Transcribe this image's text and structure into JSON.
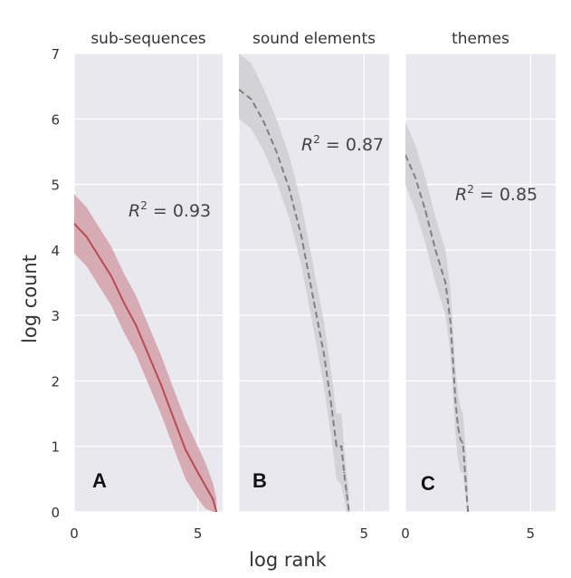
{
  "figure": {
    "ylabel": "log count",
    "xlabel": "log rank",
    "background": "#e8e8ee",
    "grid_color": "#ffffff"
  },
  "chart_data": [
    {
      "type": "line",
      "title": "sub-sequences",
      "panel_letter": "A",
      "r2": "0.93",
      "r2_prefix": "R",
      "r2_sup": "2",
      "r2_eq": " = ",
      "xlim": [
        0,
        6
      ],
      "ylim": [
        0,
        7
      ],
      "xticks": [
        0,
        5
      ],
      "yticks": [
        0,
        1,
        2,
        3,
        4,
        5,
        6,
        7
      ],
      "grid": true,
      "line_style": "solid",
      "line_color": "#b94a52",
      "band_color": "#d4a0a8",
      "series": [
        {
          "x": [
            0,
            0.5,
            1.0,
            1.5,
            2.0,
            2.5,
            3.0,
            3.5,
            4.0,
            4.5,
            5.0,
            5.3,
            5.6,
            5.75
          ],
          "y": [
            4.4,
            4.2,
            3.9,
            3.6,
            3.2,
            2.85,
            2.4,
            1.95,
            1.45,
            0.95,
            0.6,
            0.4,
            0.2,
            0.0
          ],
          "lower": [
            3.95,
            3.75,
            3.45,
            3.15,
            2.75,
            2.4,
            1.95,
            1.5,
            1.0,
            0.5,
            0.2,
            0.05,
            0.0,
            0.0
          ],
          "upper": [
            4.85,
            4.65,
            4.35,
            4.05,
            3.65,
            3.3,
            2.85,
            2.4,
            1.9,
            1.4,
            1.0,
            0.75,
            0.45,
            0.2
          ]
        }
      ]
    },
    {
      "type": "line",
      "title": "sound elements",
      "panel_letter": "B",
      "r2": "0.87",
      "r2_prefix": "R",
      "r2_sup": "2",
      "r2_eq": " = ",
      "xlim": [
        0,
        6
      ],
      "ylim": [
        0,
        7
      ],
      "xticks": [
        5
      ],
      "yticks": [
        0,
        1,
        2,
        3,
        4,
        5,
        6,
        7
      ],
      "grid": true,
      "line_style": "dashed",
      "line_color": "#808080",
      "band_color": "#cfcfd2",
      "series": [
        {
          "x": [
            0,
            0.5,
            1.0,
            1.5,
            2.0,
            2.5,
            3.0,
            3.4,
            3.7,
            3.9,
            4.1,
            4.2,
            4.3,
            4.4
          ],
          "y": [
            6.45,
            6.3,
            5.95,
            5.5,
            4.95,
            4.2,
            3.2,
            2.4,
            1.6,
            1.0,
            1.0,
            0.6,
            0.3,
            0.0
          ],
          "lower": [
            6.0,
            5.85,
            5.5,
            5.05,
            4.5,
            3.75,
            2.75,
            1.9,
            1.1,
            0.5,
            0.4,
            0.2,
            0.0,
            0.0
          ],
          "upper": [
            7.0,
            6.85,
            6.45,
            6.0,
            5.45,
            4.7,
            3.7,
            2.9,
            2.1,
            1.5,
            1.5,
            1.0,
            0.6,
            0.3
          ]
        }
      ]
    },
    {
      "type": "line",
      "title": "themes",
      "panel_letter": "C",
      "r2": "0.85",
      "r2_prefix": "R",
      "r2_sup": "2",
      "r2_eq": " = ",
      "xlim": [
        0,
        6
      ],
      "ylim": [
        0,
        7
      ],
      "xticks": [
        0,
        5
      ],
      "yticks": [
        0,
        1,
        2,
        3,
        4,
        5,
        6,
        7
      ],
      "grid": true,
      "line_style": "dashed",
      "line_color": "#808080",
      "band_color": "#cfcfd2",
      "series": [
        {
          "x": [
            0,
            0.4,
            0.8,
            1.2,
            1.6,
            1.8,
            1.9,
            2.0,
            2.1,
            2.2,
            2.3,
            2.4,
            2.5
          ],
          "y": [
            5.45,
            5.1,
            4.6,
            4.0,
            3.5,
            2.9,
            2.3,
            1.7,
            1.3,
            1.1,
            1.05,
            0.5,
            0.0
          ],
          "lower": [
            5.0,
            4.6,
            4.1,
            3.5,
            3.0,
            2.4,
            1.8,
            1.2,
            0.8,
            0.6,
            0.6,
            0.2,
            0.0
          ],
          "upper": [
            5.95,
            5.6,
            5.1,
            4.5,
            4.0,
            3.4,
            2.8,
            2.2,
            1.8,
            1.6,
            1.5,
            1.0,
            0.4
          ]
        }
      ]
    }
  ]
}
